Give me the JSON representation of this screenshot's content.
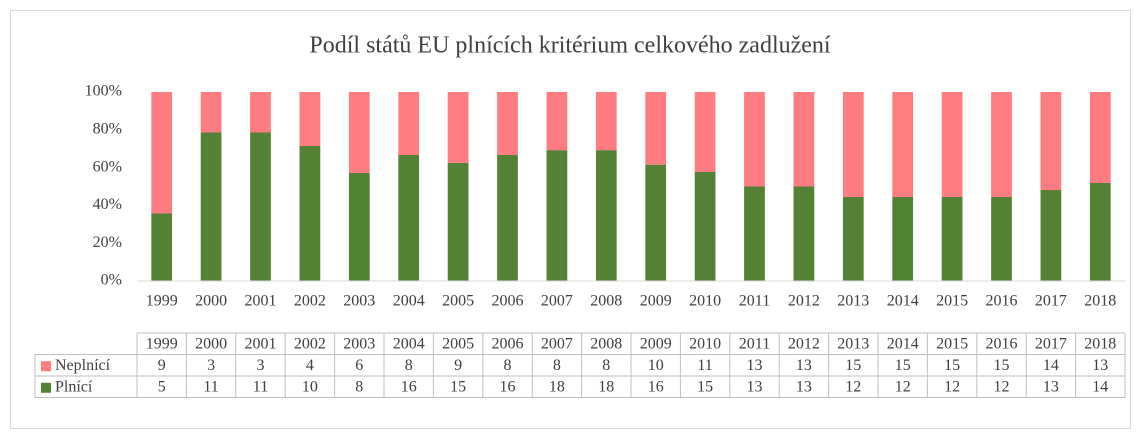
{
  "chart_data": {
    "type": "bar",
    "stacking": "percent",
    "title": "Podíl států EU plnících kritérium celkového zadlužení",
    "categories": [
      "1999",
      "2000",
      "2001",
      "2002",
      "2003",
      "2004",
      "2005",
      "2006",
      "2007",
      "2008",
      "2009",
      "2010",
      "2011",
      "2012",
      "2013",
      "2014",
      "2015",
      "2016",
      "2017",
      "2018"
    ],
    "series": [
      {
        "name": "Neplnící",
        "color": "#ff7c80",
        "values": [
          9,
          3,
          3,
          4,
          6,
          8,
          9,
          8,
          8,
          8,
          10,
          11,
          13,
          13,
          15,
          15,
          15,
          15,
          14,
          13
        ]
      },
      {
        "name": "Plnící",
        "color": "#548235",
        "values": [
          5,
          11,
          11,
          10,
          8,
          16,
          15,
          16,
          18,
          18,
          16,
          15,
          13,
          13,
          12,
          12,
          12,
          12,
          13,
          14
        ]
      }
    ],
    "ylim": [
      0,
      100
    ],
    "yticks": [
      {
        "value": 0,
        "label": "0%"
      },
      {
        "value": 20,
        "label": "20%"
      },
      {
        "value": 40,
        "label": "40%"
      },
      {
        "value": 60,
        "label": "60%"
      },
      {
        "value": 80,
        "label": "80%"
      },
      {
        "value": 100,
        "label": "100%"
      }
    ],
    "grid": false,
    "data_table": true
  }
}
